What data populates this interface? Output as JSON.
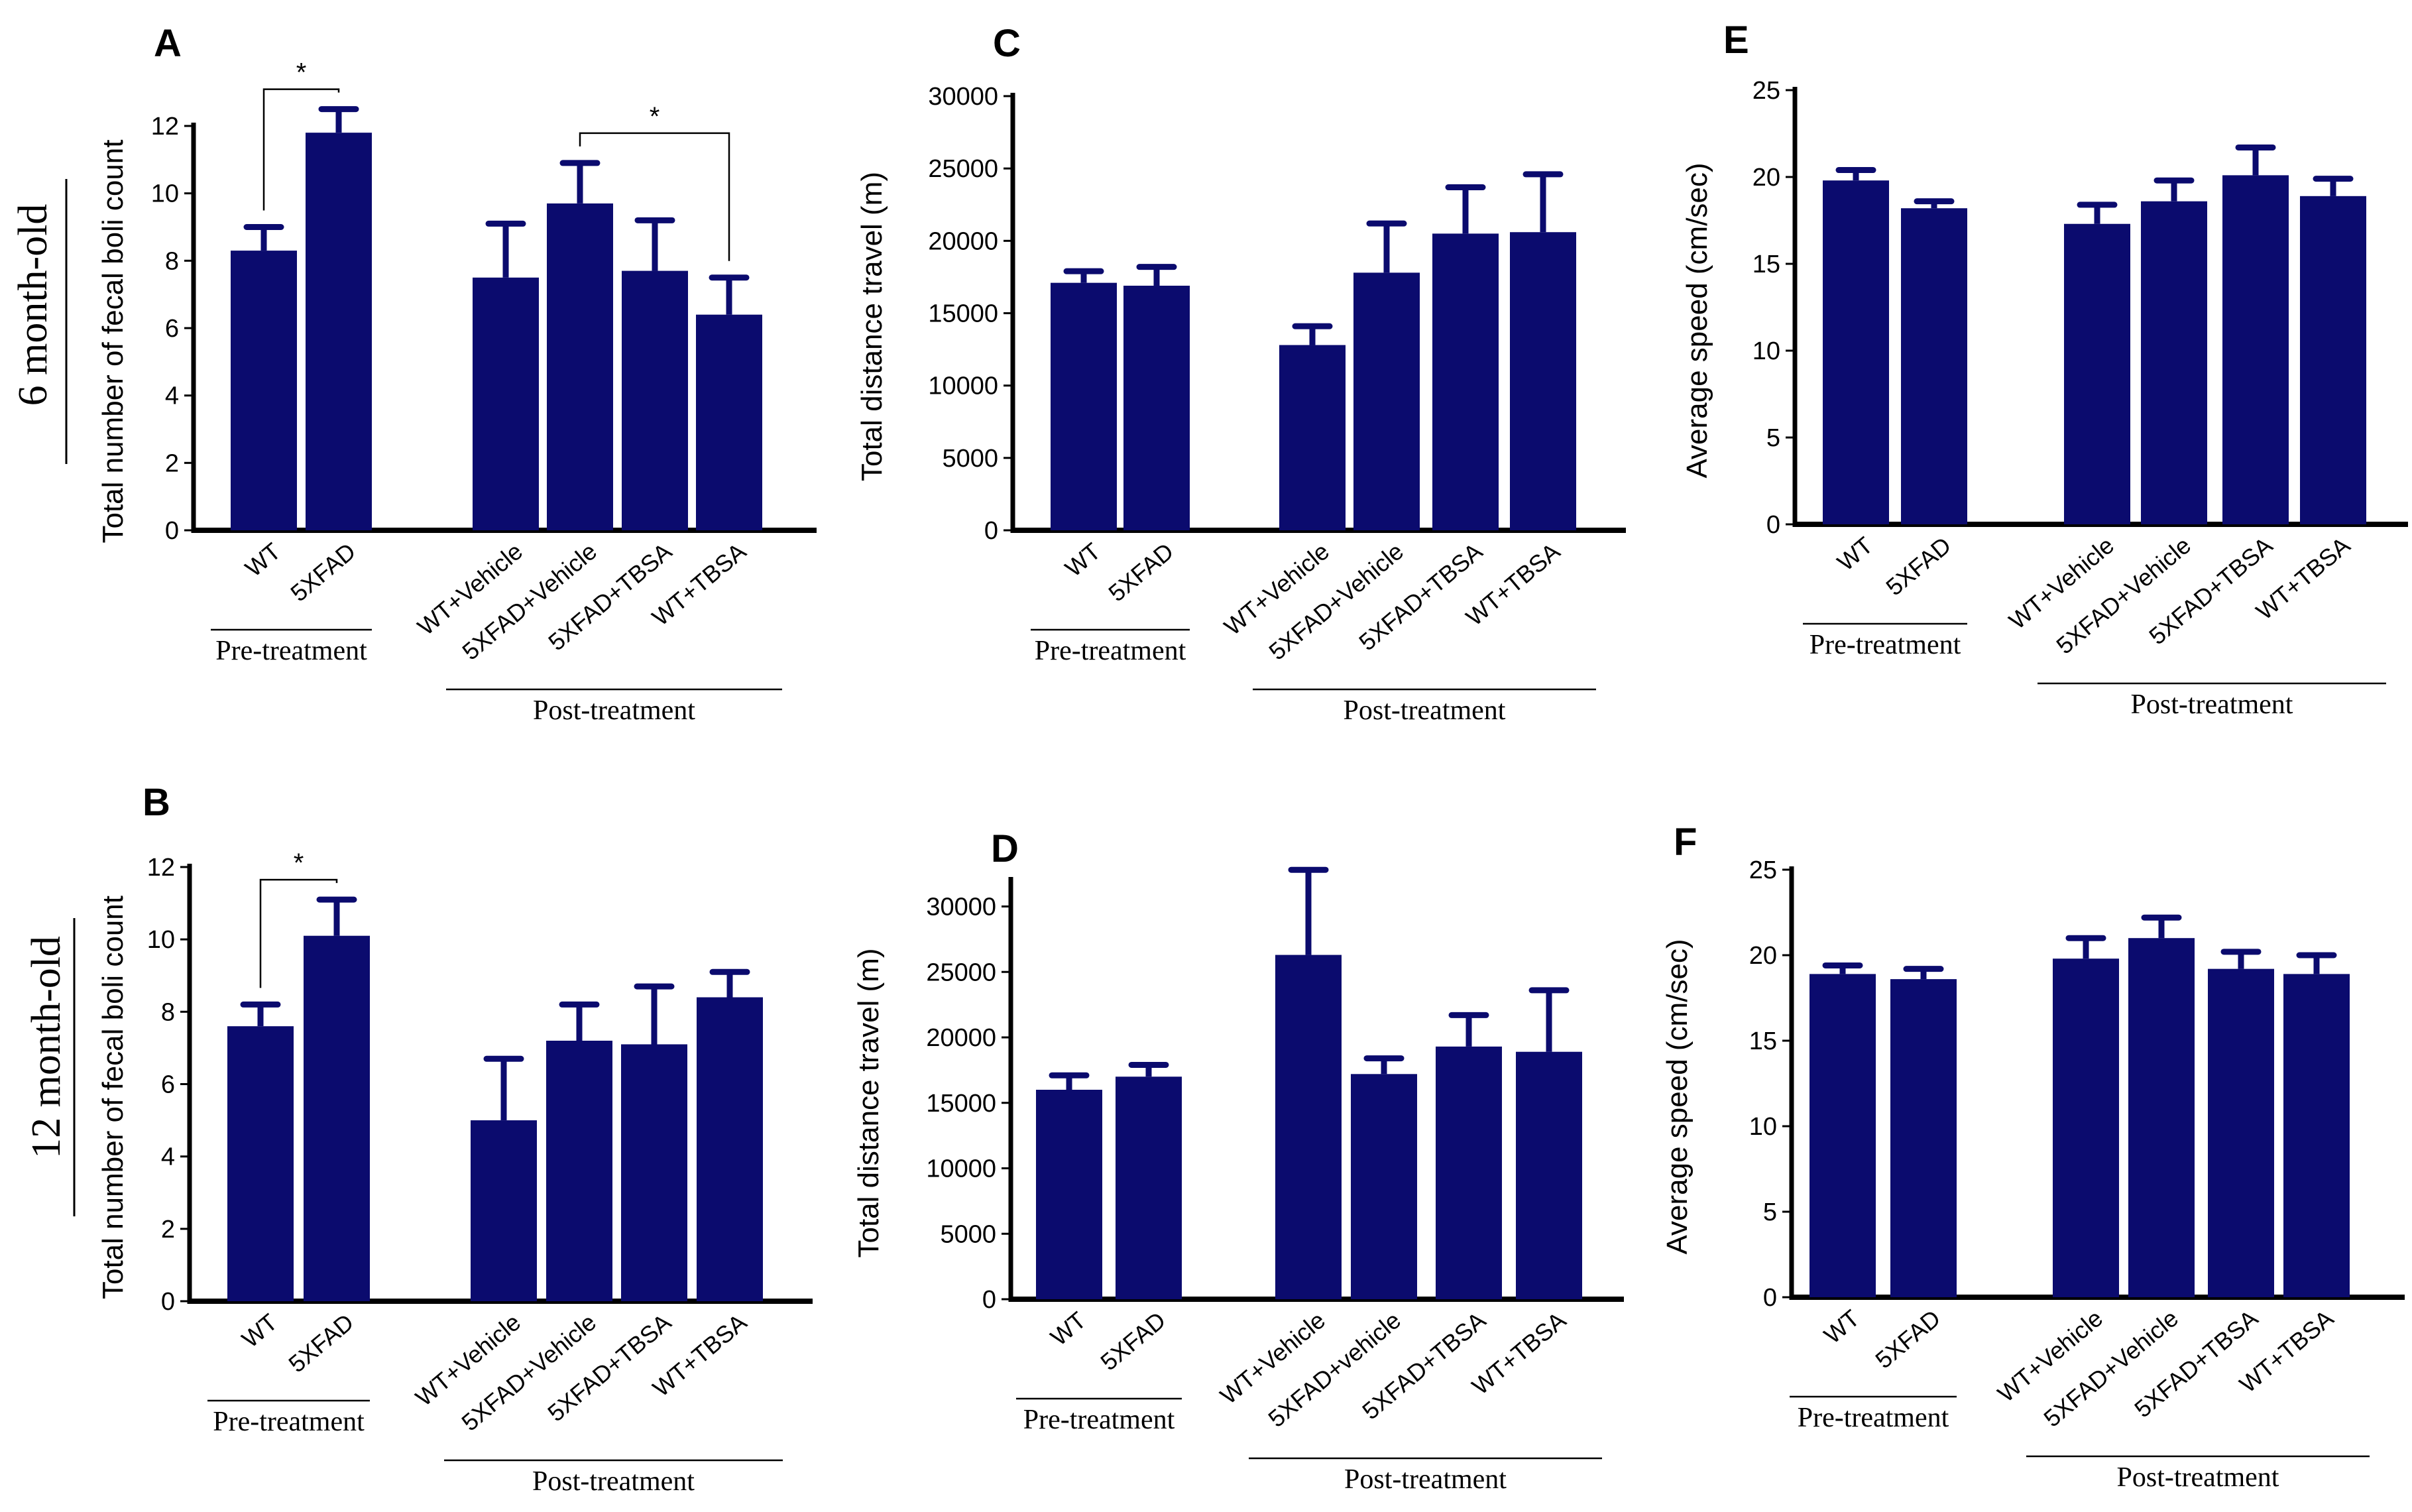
{
  "row_labels": [
    "6 month-old",
    "12 month-old"
  ],
  "colors": {
    "bar": "#0b0b6e",
    "axis": "#000000"
  },
  "chart_data": [
    {
      "panel": "A",
      "type": "bar",
      "ylabel": "Total number of fecal boli count",
      "ylim": [
        0,
        12
      ],
      "yticks": [
        0,
        2,
        4,
        6,
        8,
        10,
        12
      ],
      "categories": [
        "WT",
        "5XFAD",
        "WT+Vehicle",
        "5XFAD+Vehicle",
        "5XFAD+TBSA",
        "WT+TBSA"
      ],
      "values": [
        8.3,
        11.8,
        7.5,
        9.7,
        7.7,
        6.4
      ],
      "errors": [
        0.7,
        0.7,
        1.6,
        1.2,
        1.5,
        1.1
      ],
      "groups": [
        {
          "label": "Pre-treatment",
          "from": 0,
          "to": 1
        },
        {
          "label": "Post-treatment",
          "from": 2,
          "to": 5
        }
      ],
      "significance": [
        {
          "from": 0,
          "to": 1,
          "label": "*"
        },
        {
          "from": 3,
          "to": 5,
          "label": "*"
        }
      ]
    },
    {
      "panel": "B",
      "type": "bar",
      "ylabel": "Total number of fecal boli count",
      "ylim": [
        0,
        12
      ],
      "yticks": [
        0,
        2,
        4,
        6,
        8,
        10,
        12
      ],
      "categories": [
        "WT",
        "5XFAD",
        "WT+Vehicle",
        "5XFAD+Vehicle",
        "5XFAD+TBSA",
        "WT+TBSA"
      ],
      "values": [
        7.6,
        10.1,
        5.0,
        7.2,
        7.1,
        8.4
      ],
      "errors": [
        0.6,
        1.0,
        1.7,
        1.0,
        1.6,
        0.7
      ],
      "groups": [
        {
          "label": "Pre-treatment",
          "from": 0,
          "to": 1
        },
        {
          "label": "Post-treatment",
          "from": 2,
          "to": 5
        }
      ],
      "significance": [
        {
          "from": 0,
          "to": 1,
          "label": "*"
        }
      ]
    },
    {
      "panel": "C",
      "type": "bar",
      "ylabel": "Total distance travel (m)",
      "ylim": [
        0,
        30000
      ],
      "yticks": [
        0,
        5000,
        10000,
        15000,
        20000,
        25000,
        30000
      ],
      "categories": [
        "WT",
        "5XFAD",
        "WT+Vehicle",
        "5XFAD+Vehicle",
        "5XFAD+TBSA",
        "WT+TBSA"
      ],
      "values": [
        17100,
        16900,
        12800,
        17800,
        20500,
        20600
      ],
      "errors": [
        800,
        1300,
        1300,
        3400,
        3200,
        4000
      ],
      "groups": [
        {
          "label": "Pre-treatment",
          "from": 0,
          "to": 1
        },
        {
          "label": "Post-treatment",
          "from": 2,
          "to": 5
        }
      ],
      "significance": []
    },
    {
      "panel": "D",
      "type": "bar",
      "ylabel": "Total distance travel (m)",
      "ylim": [
        0,
        32000
      ],
      "yticks": [
        0,
        5000,
        10000,
        15000,
        20000,
        25000,
        30000
      ],
      "categories": [
        "WT",
        "5XFAD",
        "WT+Vehicle",
        "5XFAD+vehicle",
        "5XFAD+TBSA",
        "WT+TBSA"
      ],
      "values": [
        16000,
        17000,
        26300,
        17200,
        19300,
        18900
      ],
      "errors": [
        1100,
        900,
        6500,
        1200,
        2400,
        4700
      ],
      "groups": [
        {
          "label": "Pre-treatment",
          "from": 0,
          "to": 1
        },
        {
          "label": "Post-treatment",
          "from": 2,
          "to": 5
        }
      ],
      "significance": []
    },
    {
      "panel": "E",
      "type": "bar",
      "ylabel": "Average speed (cm/sec)",
      "ylim": [
        0,
        25
      ],
      "yticks": [
        0,
        5,
        10,
        15,
        20,
        25
      ],
      "categories": [
        "WT",
        "5XFAD",
        "WT+Vehicle",
        "5XFAD+Vehicle",
        "5XFAD+TBSA",
        "WT+TBSA"
      ],
      "values": [
        19.8,
        18.2,
        17.3,
        18.6,
        20.1,
        18.9
      ],
      "errors": [
        0.6,
        0.4,
        1.1,
        1.2,
        1.6,
        1.0
      ],
      "groups": [
        {
          "label": "Pre-treatment",
          "from": 0,
          "to": 1
        },
        {
          "label": "Post-treatment",
          "from": 2,
          "to": 5
        }
      ],
      "significance": []
    },
    {
      "panel": "F",
      "type": "bar",
      "ylabel": "Average speed (cm/sec)",
      "ylim": [
        0,
        25
      ],
      "yticks": [
        0,
        5,
        10,
        15,
        20,
        25
      ],
      "categories": [
        "WT",
        "5XFAD",
        "WT+Vehicle",
        "5XFAD+Vehicle",
        "5XFAD+TBSA",
        "WT+TBSA"
      ],
      "values": [
        18.9,
        18.6,
        19.8,
        21.0,
        19.2,
        18.9
      ],
      "errors": [
        0.5,
        0.6,
        1.2,
        1.2,
        1.0,
        1.1
      ],
      "groups": [
        {
          "label": "Pre-treatment",
          "from": 0,
          "to": 1
        },
        {
          "label": "Post-treatment",
          "from": 2,
          "to": 5
        }
      ],
      "significance": []
    }
  ]
}
